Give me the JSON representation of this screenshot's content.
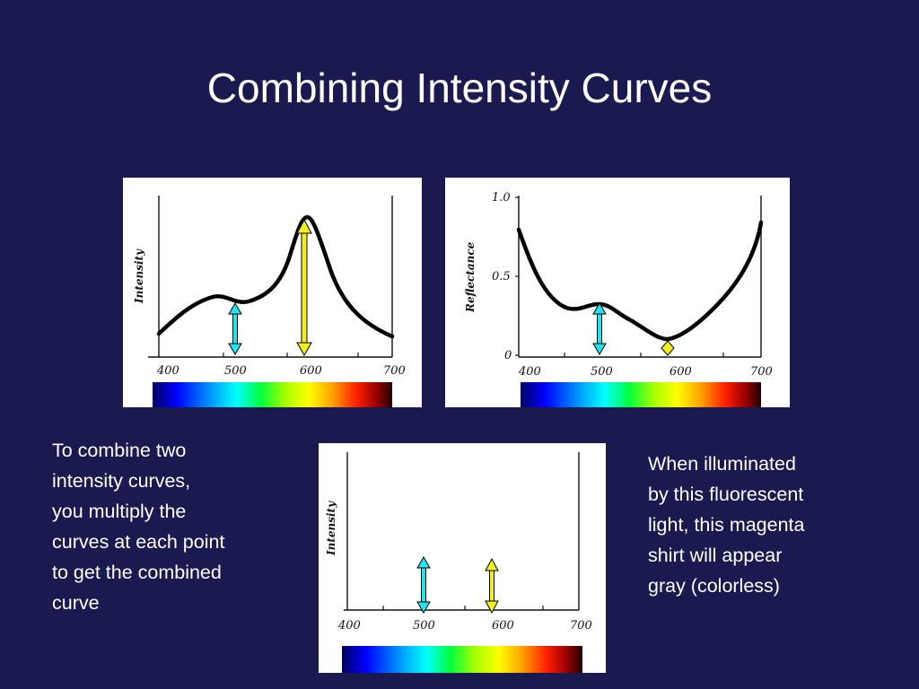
{
  "slide": {
    "title": "Combining Intensity Curves",
    "left_text": "To combine two\nintensity curves,\nyou multiply the\ncurves at each point\nto get the combined\ncurve",
    "right_text": "When illuminated\nby this fluorescent\nlight, this magenta\nshirt will appear\ngray (colorless)"
  },
  "colors": {
    "background": "#1b1a50",
    "cyan_arrow": "#22e5f0",
    "yellow_arrow": "#f0f020",
    "spectrum": [
      "#000060",
      "#0000ff",
      "#00a0ff",
      "#00ffff",
      "#00ff40",
      "#a0ff00",
      "#ffff00",
      "#ffa000",
      "#ff2000",
      "#a00000",
      "#200000"
    ]
  },
  "chart_data": [
    {
      "type": "line",
      "name": "fluorescent light",
      "ylabel": "Intensity",
      "x_ticks": [
        "400",
        "500",
        "600",
        "700"
      ],
      "x": [
        400,
        430,
        460,
        480,
        500,
        520,
        540,
        560,
        580,
        590,
        600,
        620,
        640,
        660,
        690
      ],
      "y": [
        0.15,
        0.3,
        0.38,
        0.36,
        0.34,
        0.38,
        0.52,
        0.75,
        0.95,
        0.96,
        0.9,
        0.6,
        0.38,
        0.25,
        0.13
      ],
      "arrows": [
        {
          "x": 500,
          "color": "cyan"
        },
        {
          "x": 585,
          "color": "yellow"
        }
      ]
    },
    {
      "type": "line",
      "name": "magenta shirt",
      "ylabel": "Reflectance",
      "y_ticks": [
        "1.0",
        "0.5",
        "0"
      ],
      "x_ticks": [
        "400",
        "500",
        "600",
        "700"
      ],
      "ylim": [
        0,
        1.0
      ],
      "x": [
        400,
        420,
        440,
        460,
        480,
        500,
        520,
        540,
        560,
        580,
        600,
        620,
        640,
        660,
        680,
        700
      ],
      "y": [
        0.78,
        0.55,
        0.38,
        0.3,
        0.3,
        0.32,
        0.3,
        0.23,
        0.13,
        0.08,
        0.14,
        0.26,
        0.4,
        0.52,
        0.65,
        0.82
      ],
      "arrows": [
        {
          "x": 500,
          "color": "cyan"
        },
        {
          "x": 585,
          "color": "yellow"
        }
      ]
    },
    {
      "type": "line",
      "name": "combined",
      "ylabel": "Intensity",
      "x_ticks": [
        "400",
        "500",
        "600",
        "700"
      ],
      "arrows": [
        {
          "x": 500,
          "color": "cyan"
        },
        {
          "x": 585,
          "color": "yellow"
        }
      ]
    }
  ]
}
